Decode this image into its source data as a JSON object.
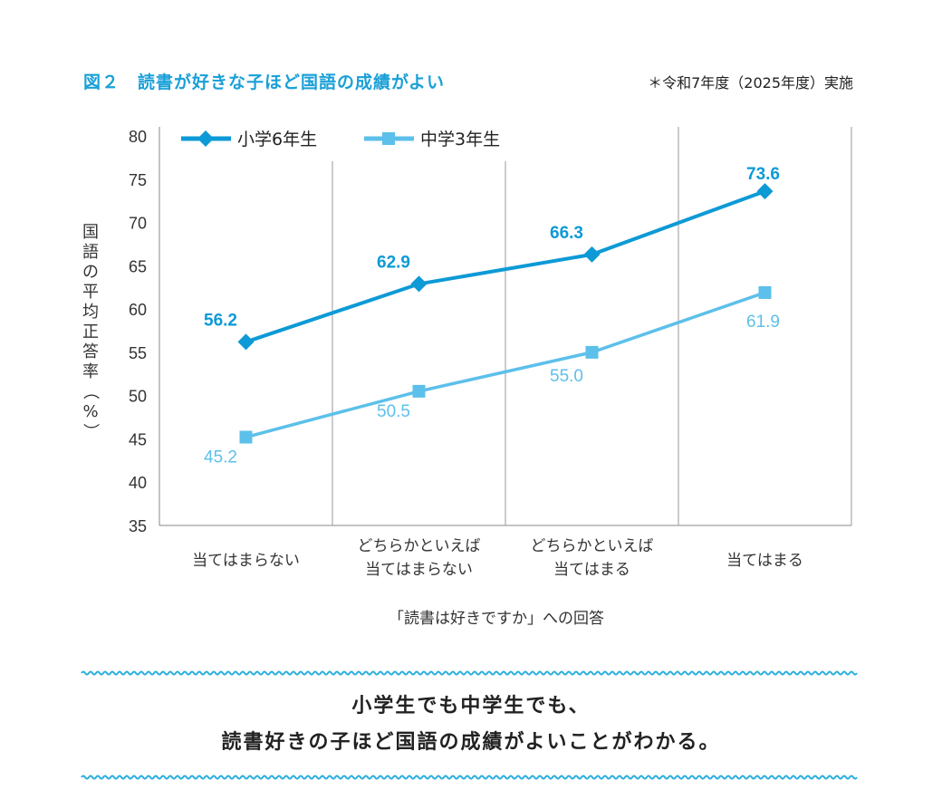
{
  "header": {
    "title": "図２　読書が好きな子ほど国語の成績がよい",
    "note": "＊令和7年度（2025年度）実施"
  },
  "chart_data": {
    "type": "line",
    "ylabel": "国語の平均正答率（%）",
    "xlabel": "「読書は好きですか」への回答",
    "ylim": [
      35,
      80
    ],
    "yticks": [
      80,
      75,
      70,
      65,
      60,
      55,
      50,
      45,
      40,
      35
    ],
    "categories": [
      [
        "当てはまらない"
      ],
      [
        "どちらかといえば",
        "当てはまらない"
      ],
      [
        "どちらかといえば",
        "当てはまる"
      ],
      [
        "当てはまる"
      ]
    ],
    "legend_position": "top-left",
    "grid": "vertical",
    "series": [
      {
        "name": "小学6年生",
        "values": [
          56.2,
          62.9,
          66.3,
          73.6
        ],
        "labels": [
          "56.2",
          "62.9",
          "66.3",
          "73.6"
        ],
        "color": "#0d9ad6",
        "marker": "diamond"
      },
      {
        "name": "中学3年生",
        "values": [
          45.2,
          50.5,
          55.0,
          61.9
        ],
        "labels": [
          "45.2",
          "50.5",
          "55.0",
          "61.9"
        ],
        "color": "#5cc0ea",
        "marker": "square"
      }
    ]
  },
  "summary": {
    "line1": "小学生でも中学生でも、",
    "line2": "読書好きの子ほど国語の成績がよいことがわかる。"
  },
  "colors": {
    "accent": "#1aa0d8",
    "wave": "#2aaedd"
  }
}
